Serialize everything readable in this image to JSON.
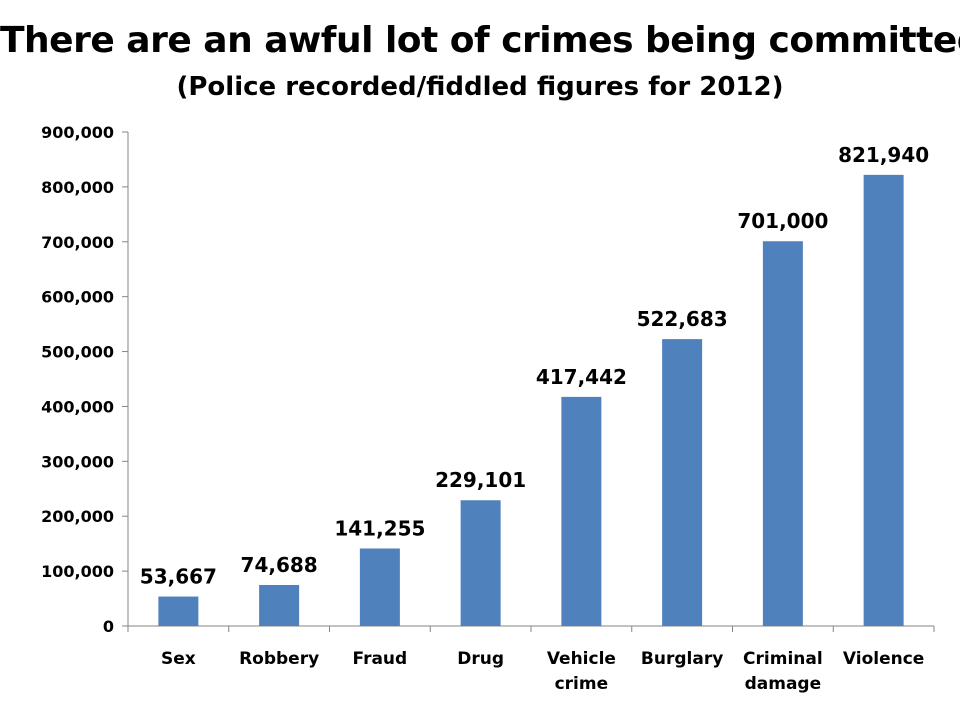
{
  "chart_data": {
    "type": "bar",
    "title": "There are an awful lot of crimes being committed",
    "subtitle": "(Police recorded/fiddled figures for 2012)",
    "categories": [
      [
        "Sex"
      ],
      [
        "Robbery"
      ],
      [
        "Fraud"
      ],
      [
        "Drug"
      ],
      [
        "Vehicle",
        "crime"
      ],
      [
        "Burglary"
      ],
      [
        "Criminal",
        "damage"
      ],
      [
        "Violence"
      ]
    ],
    "values": [
      53667,
      74688,
      141255,
      229101,
      417442,
      522683,
      701000,
      821940
    ],
    "data_labels": [
      "53,667",
      "74,688",
      "141,255",
      "229,101",
      "417,442",
      "522,683",
      "701,000",
      "821,940"
    ],
    "y_ticks": [
      0,
      100000,
      200000,
      300000,
      400000,
      500000,
      600000,
      700000,
      800000,
      900000
    ],
    "y_tick_labels": [
      "0",
      "100,000",
      "200,000",
      "300,000",
      "400,000",
      "500,000",
      "600,000",
      "700,000",
      "800,000",
      "900,000"
    ],
    "ylim": [
      0,
      900000
    ],
    "xlabel": "",
    "ylabel": "",
    "grid": false,
    "legend": "none",
    "colors": {
      "bar": "#4f81bd",
      "axis": "#868686"
    }
  }
}
